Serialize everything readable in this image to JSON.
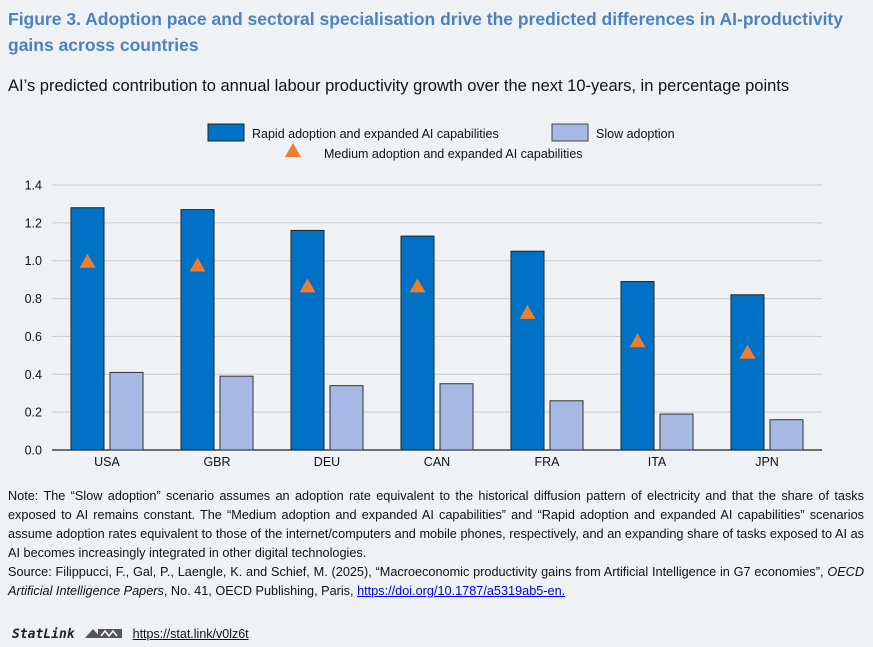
{
  "header": {
    "title": "Figure 3. Adoption pace and sectoral specialisation drive the predicted differences in AI-productivity gains across countries",
    "subtitle": "AI’s predicted contribution to annual labour productivity growth over the next 10-years, in percentage points"
  },
  "chart_data": {
    "type": "bar",
    "categories": [
      "USA",
      "GBR",
      "DEU",
      "CAN",
      "FRA",
      "ITA",
      "JPN"
    ],
    "series": [
      {
        "name": "Rapid adoption and expanded AI capabilities",
        "kind": "bar",
        "color": "#0072c6",
        "values": [
          1.28,
          1.27,
          1.16,
          1.13,
          1.05,
          0.89,
          0.82
        ]
      },
      {
        "name": "Slow adoption",
        "kind": "bar",
        "color": "#a6b8e3",
        "values": [
          0.41,
          0.39,
          0.34,
          0.35,
          0.26,
          0.19,
          0.16
        ]
      },
      {
        "name": "Medium adoption and expanded AI capabilities",
        "kind": "triangle-marker",
        "color": "#ed7d31",
        "values": [
          1.0,
          0.98,
          0.87,
          0.87,
          0.73,
          0.58,
          0.52
        ]
      }
    ],
    "ylim": [
      0,
      1.4
    ],
    "yticks": [
      "0.0",
      "0.2",
      "0.4",
      "0.6",
      "0.8",
      "1.0",
      "1.2",
      "1.4"
    ],
    "grid": true,
    "legend_placement": "top-center"
  },
  "note": {
    "text": "Note: The “Slow adoption” scenario assumes an adoption rate equivalent to the historical diffusion pattern of electricity and that the share of tasks exposed to AI remains constant. The “Medium adoption and expanded AI capabilities” and “Rapid adoption and expanded AI capabilities” scenarios assume adoption rates equivalent to those of the internet/computers and mobile phones, respectively, and an expanding share of tasks exposed to AI as AI becomes increasingly integrated in other digital technologies.",
    "source_prefix": "Source: Filippucci, F., Gal, P., Laengle, K. and Schief, M. (2025), “Macroeconomic productivity gains from Artificial Intelligence in G7 economies”, ",
    "source_italic": "OECD Artificial Intelligence Papers",
    "source_suffix": ", No. 41, OECD Publishing, Paris, ",
    "source_link": "https://doi.org/10.1787/a5319ab5-en."
  },
  "statlink": {
    "brand": "StatLink",
    "url": "https://stat.link/v0lz6t"
  }
}
